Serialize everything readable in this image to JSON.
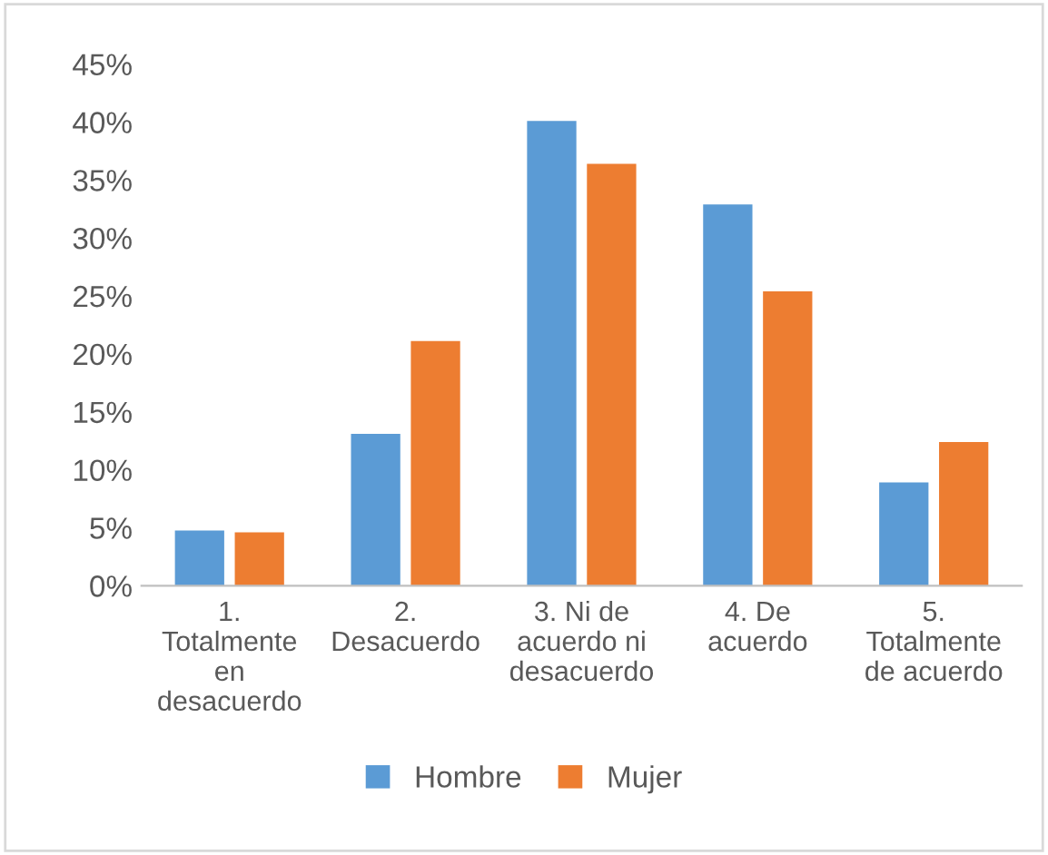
{
  "chart_data": {
    "type": "bar",
    "categories": [
      "1.\nTotalmente\nen\ndesacuerdo",
      "2.\nDesacuerdo",
      "3. Ni de\nacuerdo ni\ndesacuerdo",
      "4. De\nacuerdo",
      "5.\nTotalmente\nde acuerdo"
    ],
    "series": [
      {
        "name": "Hombre",
        "color": "#5b9bd5",
        "values": [
          4.75,
          13.1,
          40.1,
          32.9,
          8.9
        ]
      },
      {
        "name": "Mujer",
        "color": "#ed7d31",
        "values": [
          4.6,
          21.1,
          36.4,
          25.4,
          12.4
        ]
      }
    ],
    "ylim": [
      0,
      45
    ],
    "yticks": [
      {
        "value": 0,
        "label": "0%"
      },
      {
        "value": 5,
        "label": "5%"
      },
      {
        "value": 10,
        "label": "10%"
      },
      {
        "value": 15,
        "label": "15%"
      },
      {
        "value": 20,
        "label": "20%"
      },
      {
        "value": 25,
        "label": "25%"
      },
      {
        "value": 30,
        "label": "30%"
      },
      {
        "value": 35,
        "label": "35%"
      },
      {
        "value": 40,
        "label": "40%"
      },
      {
        "value": 45,
        "label": "45%"
      }
    ],
    "grid": false,
    "legend": "bottom"
  }
}
